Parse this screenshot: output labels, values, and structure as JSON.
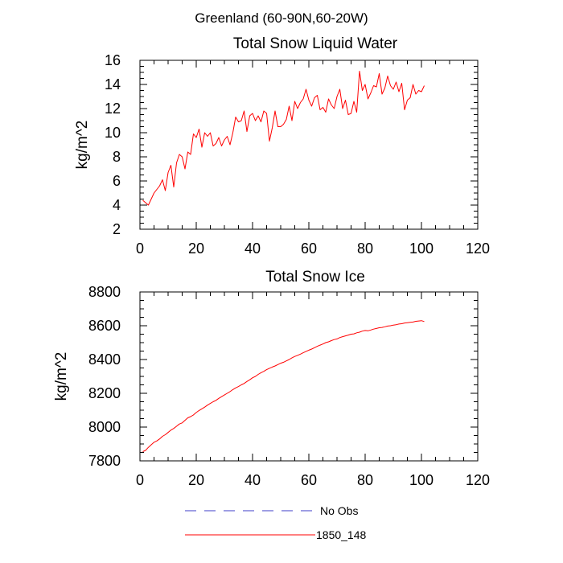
{
  "figure_title": "Greenland (60-90N,60-20W)",
  "legend": [
    {
      "label": "No Obs",
      "color": "#3c3cc8",
      "style": "dashed"
    },
    {
      "label": "1850_148",
      "color": "#ff0000",
      "style": "solid"
    }
  ],
  "chart_data": [
    {
      "type": "line",
      "title": "Total Snow Liquid Water",
      "xlabel": "",
      "ylabel": "kg/m^2",
      "xlim": [
        0,
        120
      ],
      "ylim": [
        2,
        16
      ],
      "x_ticks": [
        0,
        20,
        40,
        60,
        80,
        100,
        120
      ],
      "y_ticks": [
        2,
        4,
        6,
        8,
        10,
        12,
        14,
        16
      ],
      "grid": false,
      "series": [
        {
          "name": "1850_148",
          "color": "#ff0000",
          "x_start": 1,
          "x_step": 1,
          "values": [
            4.4,
            4.2,
            4.0,
            4.5,
            5.0,
            5.3,
            5.6,
            6.1,
            5.2,
            6.7,
            7.3,
            5.5,
            7.5,
            8.2,
            8.0,
            7.0,
            8.4,
            8.2,
            9.9,
            9.6,
            10.3,
            8.8,
            10.0,
            9.7,
            10.0,
            8.9,
            9.1,
            9.6,
            8.9,
            9.4,
            9.7,
            9.0,
            10.0,
            11.3,
            10.9,
            11.0,
            11.8,
            10.1,
            11.4,
            11.6,
            11.0,
            11.4,
            10.9,
            11.8,
            11.6,
            9.3,
            10.4,
            11.8,
            10.5,
            10.5,
            10.7,
            11.1,
            12.2,
            11.0,
            12.6,
            12.0,
            12.5,
            12.8,
            13.6,
            12.7,
            12.2,
            12.9,
            13.1,
            11.9,
            12.1,
            11.7,
            12.8,
            12.3,
            12.0,
            13.0,
            13.6,
            12.0,
            12.7,
            11.5,
            11.6,
            12.6,
            11.7,
            15.1,
            13.5,
            14.0,
            12.8,
            13.3,
            13.9,
            13.8,
            14.9,
            13.2,
            13.7,
            14.7,
            13.9,
            13.6,
            14.2,
            13.4,
            14.1,
            11.9,
            12.7,
            12.9,
            14.0,
            13.2,
            13.5,
            13.4,
            13.9
          ]
        }
      ]
    },
    {
      "type": "line",
      "title": "Total Snow Ice",
      "xlabel": "",
      "ylabel": "kg/m^2",
      "xlim": [
        0,
        120
      ],
      "ylim": [
        7800,
        8800
      ],
      "x_ticks": [
        0,
        20,
        40,
        60,
        80,
        100,
        120
      ],
      "y_ticks": [
        7800,
        8000,
        8200,
        8400,
        8600,
        8800
      ],
      "grid": false,
      "series": [
        {
          "name": "1850_148",
          "color": "#ff0000",
          "x_start": 1,
          "x_step": 1,
          "values": [
            7855,
            7862,
            7880,
            7895,
            7910,
            7918,
            7930,
            7945,
            7955,
            7968,
            7982,
            7992,
            8005,
            8018,
            8025,
            8040,
            8055,
            8062,
            8072,
            8086,
            8098,
            8108,
            8118,
            8130,
            8140,
            8150,
            8158,
            8170,
            8180,
            8190,
            8200,
            8210,
            8222,
            8232,
            8240,
            8250,
            8258,
            8270,
            8280,
            8292,
            8300,
            8312,
            8322,
            8330,
            8340,
            8348,
            8355,
            8362,
            8370,
            8378,
            8384,
            8392,
            8400,
            8410,
            8418,
            8425,
            8432,
            8440,
            8448,
            8455,
            8462,
            8470,
            8478,
            8485,
            8492,
            8500,
            8505,
            8512,
            8518,
            8522,
            8530,
            8535,
            8540,
            8545,
            8550,
            8552,
            8558,
            8562,
            8568,
            8572,
            8570,
            8575,
            8580,
            8584,
            8588,
            8590,
            8594,
            8598,
            8600,
            8604,
            8606,
            8610,
            8612,
            8616,
            8618,
            8620,
            8622,
            8626,
            8628,
            8630,
            8625
          ]
        }
      ]
    }
  ]
}
